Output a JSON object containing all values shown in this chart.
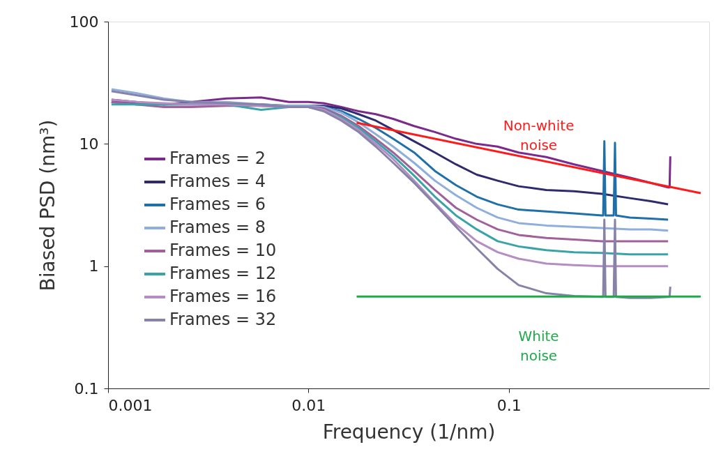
{
  "chart_data": {
    "type": "line",
    "xlabel": "Frequency (1/nm)",
    "ylabel": "Biased PSD (nm³)",
    "log": "xy",
    "grid": false,
    "legend": "left",
    "marker": "none",
    "line_style": "solid",
    "x": [
      0.00104,
      0.00138,
      0.0019,
      0.00261,
      0.00389,
      0.0058,
      0.008,
      0.01,
      0.0119,
      0.0146,
      0.0178,
      0.0217,
      0.0265,
      0.0337,
      0.0428,
      0.0545,
      0.0692,
      0.088,
      0.112,
      0.154,
      0.212,
      0.292,
      0.402,
      0.511,
      0.624
    ],
    "xlim": [
      0.001,
      1
    ],
    "xticks": [
      0.001,
      0.01,
      0.1
    ],
    "ylim": [
      0.1,
      100
    ],
    "yticks": [
      0.1,
      1,
      10,
      100
    ],
    "series": [
      {
        "name": "Frames = 2",
        "color": "#7b2a8c",
        "x": [
          0.00104,
          0.00138,
          0.0019,
          0.00261,
          0.00389,
          0.0058,
          0.008,
          0.01,
          0.0119,
          0.0146,
          0.0178,
          0.0217,
          0.0265,
          0.0337,
          0.0428,
          0.0545,
          0.0692,
          0.088,
          0.112,
          0.154,
          0.212,
          0.292,
          0.402,
          0.511,
          0.624,
          0.635,
          0.64
        ],
        "values": [
          23,
          22,
          21,
          22,
          23.5,
          24,
          22,
          22,
          21.5,
          20,
          18.5,
          17.5,
          16,
          14,
          12.5,
          11,
          10,
          9.5,
          8.5,
          7.8,
          6.8,
          6.0,
          5.3,
          4.8,
          4.4,
          4.4,
          7.9
        ]
      },
      {
        "name": "Frames = 4",
        "color": "#2e2a6e",
        "values": [
          22,
          21.5,
          21,
          21,
          21,
          21,
          20.5,
          20.5,
          20.5,
          19.5,
          17.5,
          15.5,
          13,
          10.5,
          8.5,
          6.8,
          5.6,
          5.0,
          4.5,
          4.2,
          4.1,
          3.9,
          3.6,
          3.4,
          3.2
        ]
      },
      {
        "name": "Frames = 6",
        "color": "#1f6fa8",
        "x": [
          0.00104,
          0.00138,
          0.0019,
          0.00261,
          0.00389,
          0.0058,
          0.008,
          0.01,
          0.0119,
          0.0146,
          0.0178,
          0.0217,
          0.0265,
          0.0337,
          0.0428,
          0.0545,
          0.0692,
          0.088,
          0.112,
          0.154,
          0.212,
          0.292,
          0.296,
          0.3,
          0.304,
          0.334,
          0.339,
          0.343,
          0.402,
          0.511,
          0.624
        ],
        "values": [
          22,
          21,
          21,
          21.5,
          21,
          20.5,
          20,
          20,
          20,
          18.5,
          16,
          13.5,
          11,
          8.5,
          6,
          4.6,
          3.7,
          3.2,
          2.9,
          2.8,
          2.7,
          2.6,
          2.6,
          10.5,
          2.6,
          2.6,
          10.2,
          2.6,
          2.5,
          2.45,
          2.4
        ]
      },
      {
        "name": "Frames = 8",
        "color": "#8eaedb",
        "values": [
          28,
          26,
          23.5,
          22,
          22,
          21,
          20.5,
          20.5,
          20,
          18,
          15,
          12,
          9.5,
          7,
          5,
          3.8,
          3.0,
          2.5,
          2.25,
          2.15,
          2.1,
          2.05,
          2.0,
          2.0,
          1.95
        ]
      },
      {
        "name": "Frames = 10",
        "color": "#a0609a",
        "values": [
          22,
          21,
          20,
          20,
          20.5,
          20.5,
          20,
          20,
          19.5,
          17,
          14,
          11,
          8.5,
          6,
          4.2,
          3.0,
          2.4,
          2.0,
          1.8,
          1.7,
          1.65,
          1.6,
          1.6,
          1.6,
          1.6
        ]
      },
      {
        "name": "Frames = 12",
        "color": "#3aa3a8",
        "values": [
          21,
          21,
          21,
          21,
          21,
          19,
          20,
          20,
          19,
          16.5,
          13.5,
          10.5,
          8,
          5.5,
          3.7,
          2.6,
          2.0,
          1.6,
          1.45,
          1.35,
          1.3,
          1.28,
          1.25,
          1.25,
          1.25
        ]
      },
      {
        "name": "Frames = 16",
        "color": "#b58cc4",
        "values": [
          23,
          22,
          21.5,
          21,
          21,
          20.5,
          20,
          20,
          19,
          16,
          13,
          10,
          7.5,
          5,
          3.3,
          2.2,
          1.6,
          1.3,
          1.15,
          1.05,
          1.02,
          1.0,
          1.0,
          1.0,
          1.0
        ]
      },
      {
        "name": "Frames = 32",
        "color": "#8682a8",
        "x": [
          0.00104,
          0.00138,
          0.0019,
          0.00261,
          0.00389,
          0.0058,
          0.008,
          0.01,
          0.0119,
          0.0146,
          0.0178,
          0.0217,
          0.0265,
          0.0337,
          0.0428,
          0.0545,
          0.0692,
          0.088,
          0.112,
          0.154,
          0.212,
          0.292,
          0.296,
          0.3,
          0.304,
          0.334,
          0.339,
          0.343,
          0.402,
          0.511,
          0.624,
          0.635,
          0.64
        ],
        "values": [
          27,
          25,
          23,
          22,
          21.5,
          21,
          20,
          20,
          18.5,
          15.5,
          12.5,
          9.5,
          7,
          4.8,
          3.2,
          2.1,
          1.4,
          0.95,
          0.7,
          0.6,
          0.57,
          0.56,
          0.56,
          2.4,
          0.56,
          0.56,
          2.4,
          0.56,
          0.55,
          0.55,
          0.56,
          0.56,
          0.68
        ]
      },
      {
        "color": "#ff1a1a",
        "x": [
          0.0174,
          0.908
        ],
        "values": [
          14.9,
          3.95
        ]
      },
      {
        "color": "#1faa4a",
        "x": [
          0.0174,
          0.908
        ],
        "values": [
          0.565,
          0.565
        ]
      }
    ],
    "annotations": [
      "Non-white noise",
      "White noise"
    ]
  }
}
